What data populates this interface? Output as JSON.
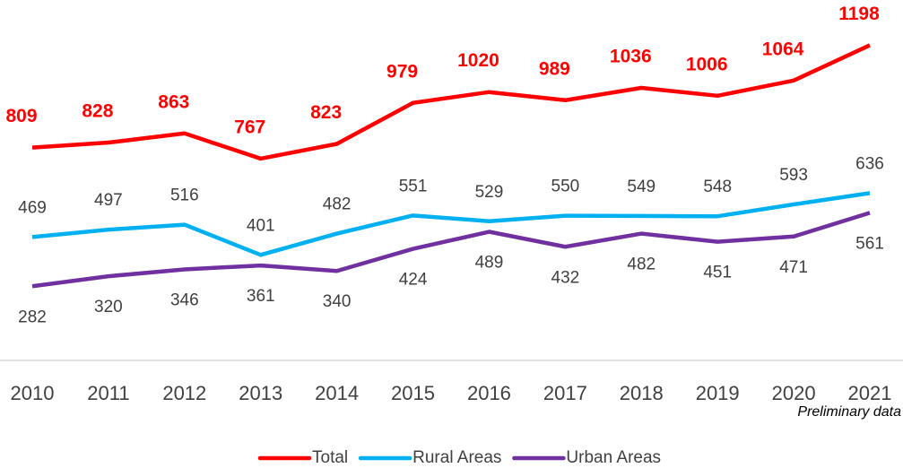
{
  "chart_data": {
    "type": "line",
    "categories": [
      "2010",
      "2011",
      "2012",
      "2013",
      "2014",
      "2015",
      "2016",
      "2017",
      "2018",
      "2019",
      "2020",
      "2021"
    ],
    "series": [
      {
        "name": "Total",
        "color": "#ff0000",
        "values": [
          809,
          828,
          863,
          767,
          823,
          979,
          1020,
          989,
          1036,
          1006,
          1064,
          1198
        ]
      },
      {
        "name": "Rural Areas",
        "color": "#00b0f0",
        "values": [
          469,
          497,
          516,
          401,
          482,
          551,
          529,
          550,
          549,
          548,
          593,
          636
        ]
      },
      {
        "name": "Urban Areas",
        "color": "#7030a0",
        "values": [
          282,
          320,
          346,
          361,
          340,
          424,
          489,
          432,
          482,
          451,
          471,
          561
        ]
      }
    ],
    "ylim": [
      0,
      1370
    ],
    "annotation": "Preliminary data",
    "legend": "bottom"
  }
}
